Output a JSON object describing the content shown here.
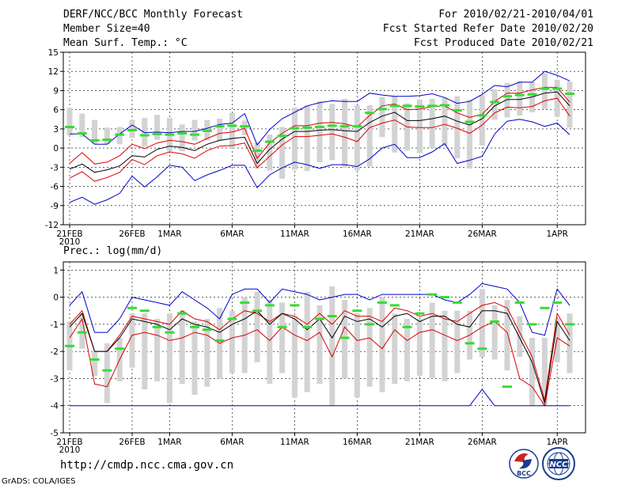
{
  "header": {
    "title": "DERF/NCC/BCC Monthly Forecast",
    "member_size": "Member Size=40",
    "forecast_period": "For 2010/02/21-2010/04/01",
    "fcst_refer_date": "Fcst Started Refer Date 2010/02/20",
    "fcst_produced_date": "Fcst Produced Date 2010/02/21"
  },
  "footer": {
    "url": "http://cmdp.ncc.cma.gov.cn",
    "credit": "GrADS: COLA/IGES",
    "logo_left": "BCC",
    "logo_right": "NCC"
  },
  "colors": {
    "blue": "#0000cc",
    "red": "#dd0000",
    "black": "#000000",
    "bar": "#d3d3d3",
    "mark": "#33dd33"
  },
  "chart_data": [
    {
      "type": "line",
      "title": "Mean Surf. Temp.: °C",
      "ylim": [
        -12,
        15
      ],
      "yticks": [
        -12,
        -9,
        -6,
        -3,
        0,
        3,
        6,
        9,
        12,
        15
      ],
      "xticks": [
        {
          "day": 0,
          "label": "21FEB",
          "sub": "2010"
        },
        {
          "day": 5,
          "label": "26FEB"
        },
        {
          "day": 8,
          "label": "1MAR"
        },
        {
          "day": 13,
          "label": "6MAR"
        },
        {
          "day": 18,
          "label": "11MAR"
        },
        {
          "day": 23,
          "label": "16MAR"
        },
        {
          "day": 28,
          "label": "21MAR"
        },
        {
          "day": 33,
          "label": "26MAR"
        },
        {
          "day": 39,
          "label": "1APR"
        }
      ],
      "series": [
        {
          "name": "max",
          "color": "blue",
          "values": [
            2.2,
            2.2,
            0.6,
            0.6,
            2.2,
            3.6,
            2.4,
            2.5,
            2.4,
            2.6,
            2.6,
            3.1,
            3.7,
            3.9,
            5.4,
            0.5,
            2.9,
            4.6,
            5.6,
            6.6,
            7.1,
            7.4,
            7.3,
            7.3,
            8.6,
            8.3,
            8.1,
            8.1,
            8.2,
            8.5,
            7.9,
            7.0,
            7.3,
            8.4,
            9.8,
            9.6,
            10.3,
            10.3,
            12.0,
            11.4,
            10.5
          ]
        },
        {
          "name": "upper",
          "color": "red",
          "values": [
            -2.4,
            -0.7,
            -2.5,
            -2.2,
            -1.2,
            0.6,
            -0.1,
            0.8,
            1.2,
            1.0,
            0.6,
            1.5,
            2.3,
            2.5,
            3.1,
            -1.6,
            0.8,
            2.3,
            3.5,
            3.5,
            3.9,
            4.0,
            3.8,
            3.3,
            5.1,
            6.6,
            6.9,
            6.0,
            6.1,
            6.5,
            6.6,
            5.5,
            4.8,
            5.3,
            7.3,
            8.6,
            8.6,
            9.1,
            9.5,
            9.5,
            7.2
          ]
        },
        {
          "name": "mean",
          "color": "black",
          "values": [
            -3.3,
            -2.5,
            -3.8,
            -3.4,
            -2.8,
            -1.2,
            -1.4,
            -0.2,
            0.3,
            0.1,
            -0.4,
            0.6,
            1.2,
            1.5,
            1.7,
            -2.4,
            -0.2,
            1.4,
            2.6,
            2.6,
            2.8,
            2.9,
            2.7,
            2.6,
            4.0,
            5.0,
            5.6,
            4.3,
            4.3,
            4.6,
            5.0,
            4.2,
            3.6,
            4.6,
            6.6,
            7.6,
            7.6,
            8.0,
            8.6,
            8.8,
            6.6
          ]
        },
        {
          "name": "lower",
          "color": "red",
          "values": [
            -4.7,
            -3.7,
            -5.2,
            -4.6,
            -3.8,
            -1.8,
            -2.6,
            -1.2,
            -0.6,
            -0.9,
            -1.6,
            -0.4,
            0.3,
            0.4,
            0.8,
            -3.1,
            -1.3,
            0.5,
            1.8,
            1.8,
            2.0,
            2.2,
            1.7,
            1.0,
            3.2,
            3.9,
            4.4,
            3.3,
            3.2,
            3.2,
            3.7,
            3.1,
            2.3,
            3.6,
            5.5,
            6.4,
            6.3,
            6.5,
            7.4,
            7.8,
            5.0
          ]
        },
        {
          "name": "min",
          "color": "blue",
          "values": [
            -8.5,
            -7.7,
            -8.8,
            -8.1,
            -7.1,
            -4.4,
            -6.1,
            -4.5,
            -2.7,
            -3.0,
            -5.1,
            -4.2,
            -3.5,
            -2.7,
            -2.7,
            -6.2,
            -4.2,
            -3.1,
            -2.2,
            -2.6,
            -3.2,
            -2.6,
            -2.6,
            -2.9,
            -1.7,
            0.0,
            0.6,
            -1.5,
            -1.5,
            -0.6,
            0.7,
            -2.4,
            -1.9,
            -1.3,
            2.2,
            4.2,
            4.5,
            4.1,
            3.4,
            3.9,
            2.1
          ]
        }
      ],
      "bars": [
        [
          2.0,
          6.3
        ],
        [
          1.7,
          5.4
        ],
        [
          0.7,
          4.4
        ],
        [
          0.6,
          3.2
        ],
        [
          0.6,
          3.3
        ],
        [
          1.6,
          4.4
        ],
        [
          0.2,
          4.7
        ],
        [
          1.3,
          5.2
        ],
        [
          -0.5,
          4.7
        ],
        [
          -0.5,
          3.7
        ],
        [
          1.2,
          4.4
        ],
        [
          1.2,
          4.4
        ],
        [
          1.1,
          4.6
        ],
        [
          0.0,
          5.5
        ],
        [
          2.0,
          4.3
        ],
        [
          -3.2,
          0.9
        ],
        [
          -3.5,
          2.1
        ],
        [
          -4.8,
          3.3
        ],
        [
          -3.4,
          6.3
        ],
        [
          -3.6,
          6.7
        ],
        [
          -2.2,
          7.3
        ],
        [
          -1.9,
          6.9
        ],
        [
          -3.1,
          7.7
        ],
        [
          -3.5,
          6.7
        ],
        [
          -2.9,
          6.7
        ],
        [
          1.7,
          8.0
        ],
        [
          -0.7,
          8.1
        ],
        [
          -0.4,
          7.0
        ],
        [
          -0.8,
          7.6
        ],
        [
          0.0,
          7.7
        ],
        [
          0.3,
          7.9
        ],
        [
          -1.6,
          8.1
        ],
        [
          -3.2,
          7.6
        ],
        [
          0.4,
          8.3
        ],
        [
          4.4,
          9.2
        ],
        [
          4.8,
          10.2
        ],
        [
          5.1,
          10.5
        ],
        [
          5.6,
          10.3
        ],
        [
          6.1,
          11.7
        ],
        [
          4.9,
          10.7
        ],
        [
          3.2,
          10.4
        ]
      ],
      "marks": [
        3.3,
        2.3,
        1.2,
        1.3,
        2.1,
        2.8,
        2.0,
        2.2,
        2.1,
        2.3,
        2.1,
        2.7,
        3.4,
        3.5,
        3.4,
        -0.4,
        1.0,
        1.9,
        3.1,
        3.2,
        3.3,
        3.5,
        3.4,
        3.4,
        5.5,
        6.1,
        6.6,
        6.6,
        6.5,
        6.6,
        6.7,
        5.9,
        4.1,
        5.1,
        7.2,
        8.1,
        8.3,
        8.4,
        9.3,
        9.3,
        8.5
      ]
    },
    {
      "type": "line",
      "title": "Prec.: log(mm/d)",
      "ylim": [
        -5,
        1.3
      ],
      "yticks": [
        -5,
        -4,
        -3,
        -2,
        -1,
        0,
        1
      ],
      "xticks": [
        {
          "day": 0,
          "label": "21FEB",
          "sub": "2010"
        },
        {
          "day": 5,
          "label": "26FEB"
        },
        {
          "day": 8,
          "label": "1MAR"
        },
        {
          "day": 13,
          "label": "6MAR"
        },
        {
          "day": 18,
          "label": "11MAR"
        },
        {
          "day": 23,
          "label": "16MAR"
        },
        {
          "day": 28,
          "label": "21MAR"
        },
        {
          "day": 33,
          "label": "26MAR"
        },
        {
          "day": 39,
          "label": "1APR"
        }
      ],
      "series": [
        {
          "name": "max",
          "color": "blue",
          "values": [
            -0.3,
            0.2,
            -1.3,
            -1.3,
            -0.8,
            0.0,
            -0.1,
            -0.2,
            -0.3,
            0.2,
            -0.1,
            -0.4,
            -0.8,
            0.1,
            0.3,
            0.3,
            -0.2,
            0.3,
            0.2,
            0.1,
            -0.1,
            0.0,
            0.1,
            0.1,
            -0.1,
            0.1,
            0.1,
            0.1,
            0.1,
            0.1,
            -0.1,
            -0.2,
            0.1,
            0.5,
            0.4,
            0.3,
            -0.2,
            -1.3,
            -1.4,
            0.3,
            -0.3
          ]
        },
        {
          "name": "upper",
          "color": "red",
          "values": [
            -1.0,
            -0.5,
            -2.0,
            -2.0,
            -1.4,
            -0.7,
            -0.8,
            -0.9,
            -1.0,
            -0.5,
            -0.8,
            -0.9,
            -1.2,
            -0.8,
            -0.5,
            -0.6,
            -0.9,
            -0.6,
            -0.7,
            -1.0,
            -0.6,
            -1.0,
            -0.5,
            -0.7,
            -0.7,
            -0.9,
            -0.4,
            -0.5,
            -0.7,
            -0.6,
            -0.8,
            -0.9,
            -0.6,
            -0.3,
            -0.2,
            -0.4,
            -1.3,
            -2.2,
            -3.8,
            -0.6,
            -1.4
          ]
        },
        {
          "name": "mean",
          "color": "black",
          "values": [
            -1.1,
            -0.6,
            -2.0,
            -2.0,
            -1.5,
            -0.8,
            -0.9,
            -1.0,
            -1.2,
            -0.8,
            -1.0,
            -1.1,
            -1.3,
            -1.0,
            -0.8,
            -0.5,
            -1.0,
            -0.6,
            -0.8,
            -1.2,
            -0.8,
            -1.5,
            -0.7,
            -0.9,
            -0.8,
            -1.1,
            -0.7,
            -0.6,
            -0.9,
            -0.7,
            -0.7,
            -1.0,
            -1.1,
            -0.5,
            -0.5,
            -0.6,
            -1.5,
            -2.4,
            -3.9,
            -0.9,
            -1.6
          ]
        },
        {
          "name": "lower",
          "color": "red",
          "values": [
            -1.5,
            -0.8,
            -3.2,
            -3.3,
            -2.3,
            -1.4,
            -1.3,
            -1.4,
            -1.6,
            -1.5,
            -1.3,
            -1.4,
            -1.7,
            -1.5,
            -1.4,
            -1.2,
            -1.6,
            -1.1,
            -1.4,
            -1.6,
            -1.3,
            -2.2,
            -1.1,
            -1.6,
            -1.5,
            -1.9,
            -1.2,
            -1.6,
            -1.3,
            -1.2,
            -1.4,
            -1.6,
            -1.4,
            -1.1,
            -0.9,
            -1.3,
            -3.0,
            -3.3,
            -4.0,
            -1.5,
            -1.8
          ]
        },
        {
          "name": "min",
          "color": "blue",
          "values": [
            -4.0,
            -4.0,
            -4.0,
            -4.0,
            -4.0,
            -4.0,
            -4.0,
            -4.0,
            -4.0,
            -4.0,
            -4.0,
            -4.0,
            -4.0,
            -4.0,
            -4.0,
            -4.0,
            -4.0,
            -4.0,
            -4.0,
            -4.0,
            -4.0,
            -4.0,
            -4.0,
            -4.0,
            -4.0,
            -4.0,
            -4.0,
            -4.0,
            -4.0,
            -4.0,
            -4.0,
            -4.0,
            -4.0,
            -3.4,
            -4.0,
            -4.0,
            -4.0,
            -4.0,
            -4.0,
            -4.0,
            -4.0
          ]
        }
      ],
      "bars": [
        [
          -2.7,
          -0.9
        ],
        [
          -1.9,
          -0.6
        ],
        [
          -2.9,
          -2.0
        ],
        [
          -3.9,
          -1.7
        ],
        [
          -3.1,
          -1.5
        ],
        [
          -2.6,
          -0.6
        ],
        [
          -3.4,
          -0.6
        ],
        [
          -3.1,
          -0.8
        ],
        [
          -3.9,
          -0.6
        ],
        [
          -3.2,
          -0.5
        ],
        [
          -3.6,
          -0.9
        ],
        [
          -3.3,
          -0.8
        ],
        [
          -3.0,
          -0.4
        ],
        [
          -2.8,
          -0.5
        ],
        [
          -2.8,
          0.0
        ],
        [
          -2.4,
          0.2
        ],
        [
          -3.2,
          -0.1
        ],
        [
          -2.8,
          -0.2
        ],
        [
          -3.7,
          -0.7
        ],
        [
          -3.5,
          0.2
        ],
        [
          -3.2,
          -0.3
        ],
        [
          -4.0,
          0.4
        ],
        [
          -3.0,
          -0.1
        ],
        [
          -3.7,
          -0.6
        ],
        [
          -3.3,
          -0.4
        ],
        [
          -3.5,
          0.0
        ],
        [
          -3.2,
          -0.6
        ],
        [
          -3.1,
          -0.8
        ],
        [
          -2.9,
          -0.8
        ],
        [
          -3.0,
          -0.2
        ],
        [
          -3.1,
          -0.5
        ],
        [
          -2.8,
          -0.5
        ],
        [
          -2.3,
          -0.5
        ],
        [
          -2.2,
          0.3
        ],
        [
          -2.3,
          -0.3
        ],
        [
          -2.7,
          -0.1
        ],
        [
          -2.2,
          -0.7
        ],
        [
          -4.0,
          -1.5
        ],
        [
          -4.0,
          -1.5
        ],
        [
          -2.4,
          -0.8
        ],
        [
          -2.8,
          -0.6
        ]
      ],
      "marks": [
        -1.8,
        -1.3,
        -2.3,
        -2.7,
        -1.9,
        -0.4,
        -0.5,
        -1.1,
        -1.3,
        -0.6,
        -1.1,
        -1.2,
        -1.6,
        -0.8,
        -0.2,
        -0.5,
        -0.3,
        -1.1,
        -0.3,
        -1.1,
        -0.8,
        -0.7,
        -1.5,
        -0.5,
        -1.0,
        -0.2,
        -0.3,
        -1.1,
        -0.6,
        0.1,
        0.0,
        -0.2,
        -1.7,
        -1.9,
        -0.9,
        -3.3,
        -0.2,
        -1.0,
        -0.4,
        -0.2,
        -1.0
      ]
    }
  ]
}
